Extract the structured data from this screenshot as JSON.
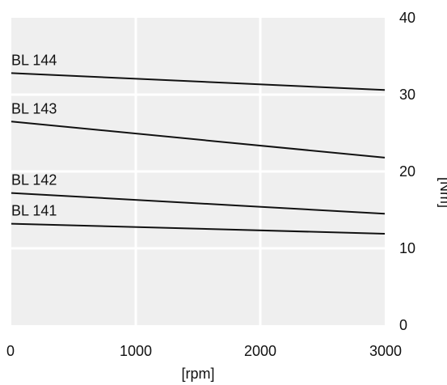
{
  "chart_data": {
    "type": "line",
    "title": "",
    "xlabel": "[rpm]",
    "ylabel": "[Nm]",
    "xlim": [
      0,
      3000
    ],
    "ylim": [
      0,
      40
    ],
    "x_ticks": [
      {
        "value": 0,
        "label": "0"
      },
      {
        "value": 1000,
        "label": "1000"
      },
      {
        "value": 2000,
        "label": "2000"
      },
      {
        "value": 3000,
        "label": "3000"
      }
    ],
    "y_ticks": [
      {
        "value": 0,
        "label": "0"
      },
      {
        "value": 10,
        "label": "10"
      },
      {
        "value": 20,
        "label": "20"
      },
      {
        "value": 30,
        "label": "30"
      },
      {
        "value": 40,
        "label": "40"
      }
    ],
    "grid": true,
    "y_axis_side": "right",
    "legend": "inline labels above each line at the left edge",
    "colors": {
      "background": "#efefef",
      "grid": "#ffffff",
      "line": "#111111"
    },
    "series": [
      {
        "name": "BL 144",
        "x": [
          0,
          3000
        ],
        "y": [
          32.8,
          30.6
        ]
      },
      {
        "name": "BL 143",
        "x": [
          0,
          3000
        ],
        "y": [
          26.5,
          21.8
        ]
      },
      {
        "name": "BL 142",
        "x": [
          0,
          3000
        ],
        "y": [
          17.2,
          14.5
        ]
      },
      {
        "name": "BL 141",
        "x": [
          0,
          3000
        ],
        "y": [
          13.2,
          11.9
        ]
      }
    ]
  }
}
